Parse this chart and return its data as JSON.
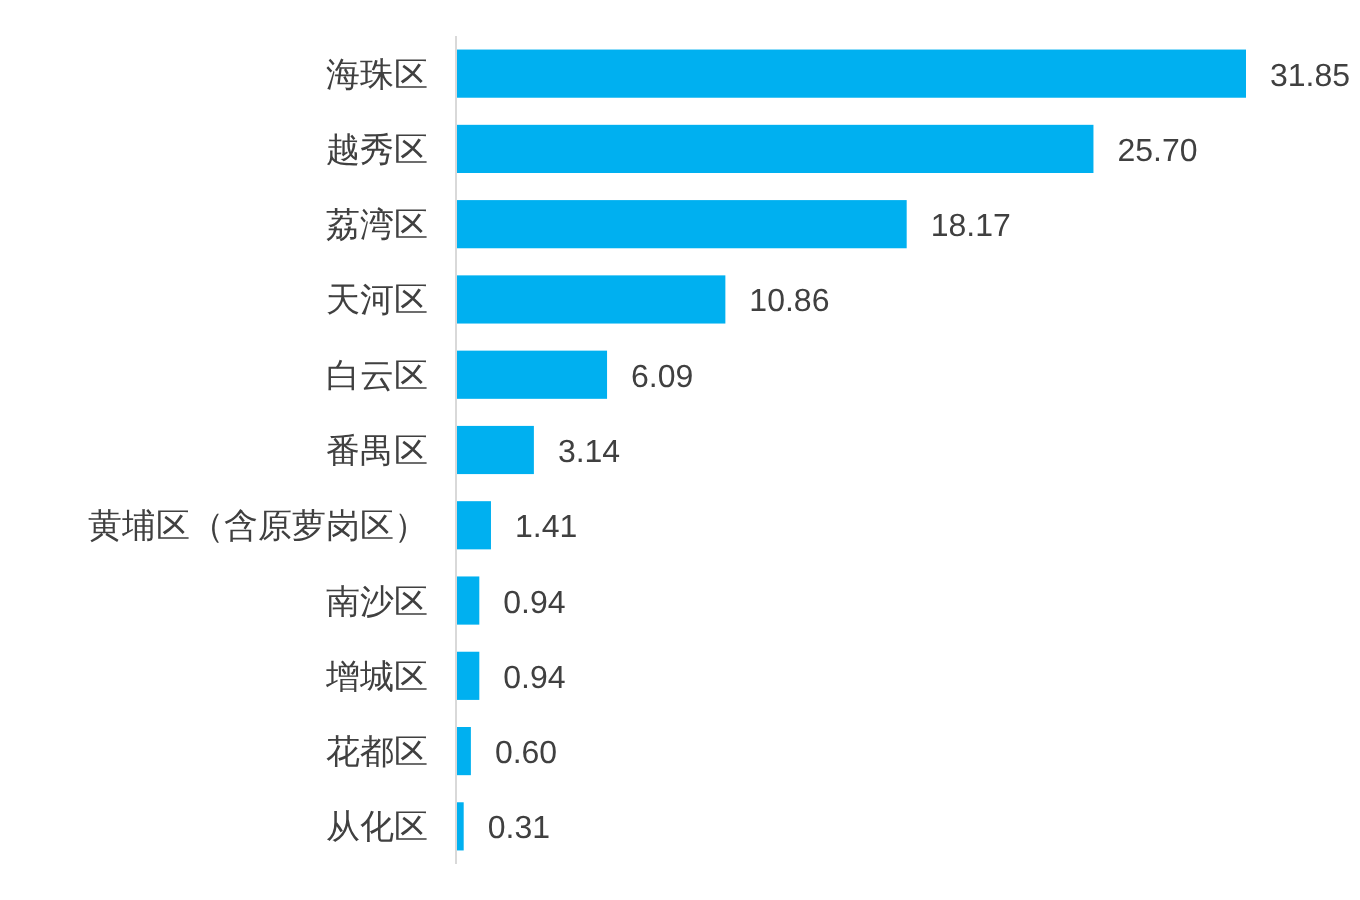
{
  "chart_data": {
    "type": "bar",
    "orientation": "horizontal",
    "data_labels": true,
    "color": "#00b0f0",
    "categories": [
      "海珠区",
      "越秀区",
      "荔湾区",
      "天河区",
      "白云区",
      "番禺区",
      "黄埔区（含原萝岗区）",
      "南沙区",
      "增城区",
      "花都区",
      "从化区"
    ],
    "values": [
      31.85,
      25.7,
      18.17,
      10.86,
      6.09,
      3.14,
      1.41,
      0.94,
      0.94,
      0.6,
      0.31
    ],
    "value_labels": [
      "31.85",
      "25.70",
      "18.17",
      "10.86",
      "6.09",
      "3.14",
      "1.41",
      "0.94",
      "0.94",
      "0.60",
      "0.31"
    ]
  }
}
